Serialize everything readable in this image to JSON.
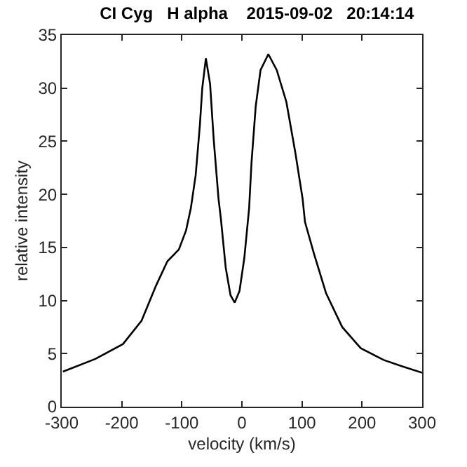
{
  "chart_data": {
    "type": "line",
    "title": "CI Cyg   H alpha    2015-09-02   20:14:14",
    "xlabel": "velocity (km/s)",
    "ylabel": "relative intensity",
    "x": [
      -298,
      -244,
      -198,
      -167,
      -143,
      -124,
      -105,
      -93,
      -85,
      -77,
      -70,
      -66,
      -60,
      -53,
      -47,
      -39,
      -35,
      -27,
      -19,
      -12,
      -4,
      4,
      12,
      16,
      23,
      31,
      44,
      58,
      74,
      89,
      101,
      105,
      120,
      140,
      167,
      198,
      236,
      267,
      300
    ],
    "series": [
      {
        "color": "#000000",
        "values": [
          3.3,
          4.5,
          5.9,
          8.1,
          11.4,
          13.7,
          14.8,
          16.6,
          18.7,
          21.8,
          26.5,
          30,
          32.8,
          30.4,
          25.2,
          19.6,
          17.7,
          13.1,
          10.5,
          9.8,
          10.9,
          14,
          18.7,
          23,
          28.3,
          31.7,
          33.2,
          31.7,
          28.7,
          23.9,
          19.6,
          17.4,
          14.4,
          10.7,
          7.5,
          5.5,
          4.4,
          3.8,
          3.2
        ]
      }
    ],
    "xlim": [
      -300,
      300
    ],
    "xticks": [
      -300,
      -200,
      -100,
      0,
      100,
      200,
      300
    ],
    "ylim": [
      0,
      35
    ],
    "yticks": [
      0,
      5,
      10,
      15,
      20,
      25,
      30,
      35
    ],
    "grid": false,
    "marker": "none",
    "line_style": "solid"
  }
}
